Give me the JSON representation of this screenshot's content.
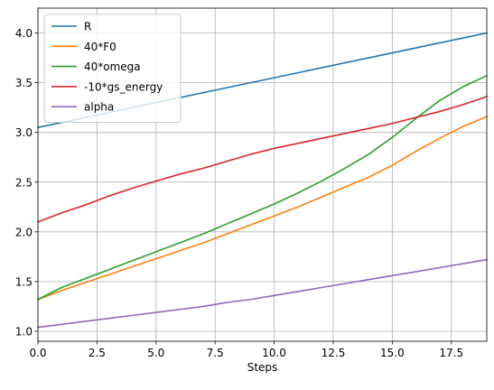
{
  "chart_data": {
    "type": "line",
    "title": "",
    "xlabel": "Steps",
    "ylabel": "",
    "xlim": [
      0,
      19
    ],
    "ylim": [
      0.9,
      4.25
    ],
    "xticks": [
      0,
      2.5,
      5,
      7.5,
      10,
      12.5,
      15,
      17.5
    ],
    "xtick_labels": [
      "0.0",
      "2.5",
      "5.0",
      "7.5",
      "10.0",
      "12.5",
      "15.0",
      "17.5"
    ],
    "yticks": [
      1.0,
      1.5,
      2.0,
      2.5,
      3.0,
      3.5,
      4.0
    ],
    "ytick_labels": [
      "1.0",
      "1.5",
      "2.0",
      "2.5",
      "3.0",
      "3.5",
      "4.0"
    ],
    "grid": true,
    "legend_position": "top-left",
    "x": [
      0,
      1,
      2,
      3,
      4,
      5,
      6,
      7,
      8,
      9,
      10,
      11,
      12,
      13,
      14,
      15,
      16,
      17,
      18,
      19
    ],
    "series": [
      {
        "name": "R",
        "color": "#1f77b4",
        "values": [
          3.05,
          3.1,
          3.15,
          3.2,
          3.25,
          3.3,
          3.35,
          3.4,
          3.45,
          3.5,
          3.55,
          3.6,
          3.65,
          3.7,
          3.75,
          3.8,
          3.85,
          3.9,
          3.95,
          4.0
        ]
      },
      {
        "name": "40*F0",
        "color": "#ff7f0e",
        "values": [
          1.32,
          1.41,
          1.49,
          1.57,
          1.65,
          1.73,
          1.81,
          1.89,
          1.98,
          2.07,
          2.16,
          2.25,
          2.35,
          2.45,
          2.55,
          2.67,
          2.81,
          2.94,
          3.06,
          3.16
        ]
      },
      {
        "name": "40*omega",
        "color": "#2ca02c",
        "values": [
          1.32,
          1.44,
          1.53,
          1.62,
          1.71,
          1.8,
          1.89,
          1.98,
          2.08,
          2.18,
          2.28,
          2.39,
          2.51,
          2.64,
          2.78,
          2.95,
          3.14,
          3.32,
          3.46,
          3.57
        ]
      },
      {
        "name": "-10*gs_energy",
        "color": "#d62728",
        "values": [
          2.1,
          2.19,
          2.27,
          2.36,
          2.44,
          2.51,
          2.58,
          2.64,
          2.71,
          2.78,
          2.84,
          2.89,
          2.94,
          2.99,
          3.04,
          3.09,
          3.15,
          3.21,
          3.28,
          3.36
        ]
      },
      {
        "name": "alpha",
        "color": "#9467bd",
        "values": [
          1.04,
          1.07,
          1.1,
          1.13,
          1.16,
          1.19,
          1.22,
          1.25,
          1.29,
          1.32,
          1.36,
          1.4,
          1.44,
          1.48,
          1.52,
          1.56,
          1.6,
          1.64,
          1.68,
          1.72
        ]
      }
    ]
  }
}
